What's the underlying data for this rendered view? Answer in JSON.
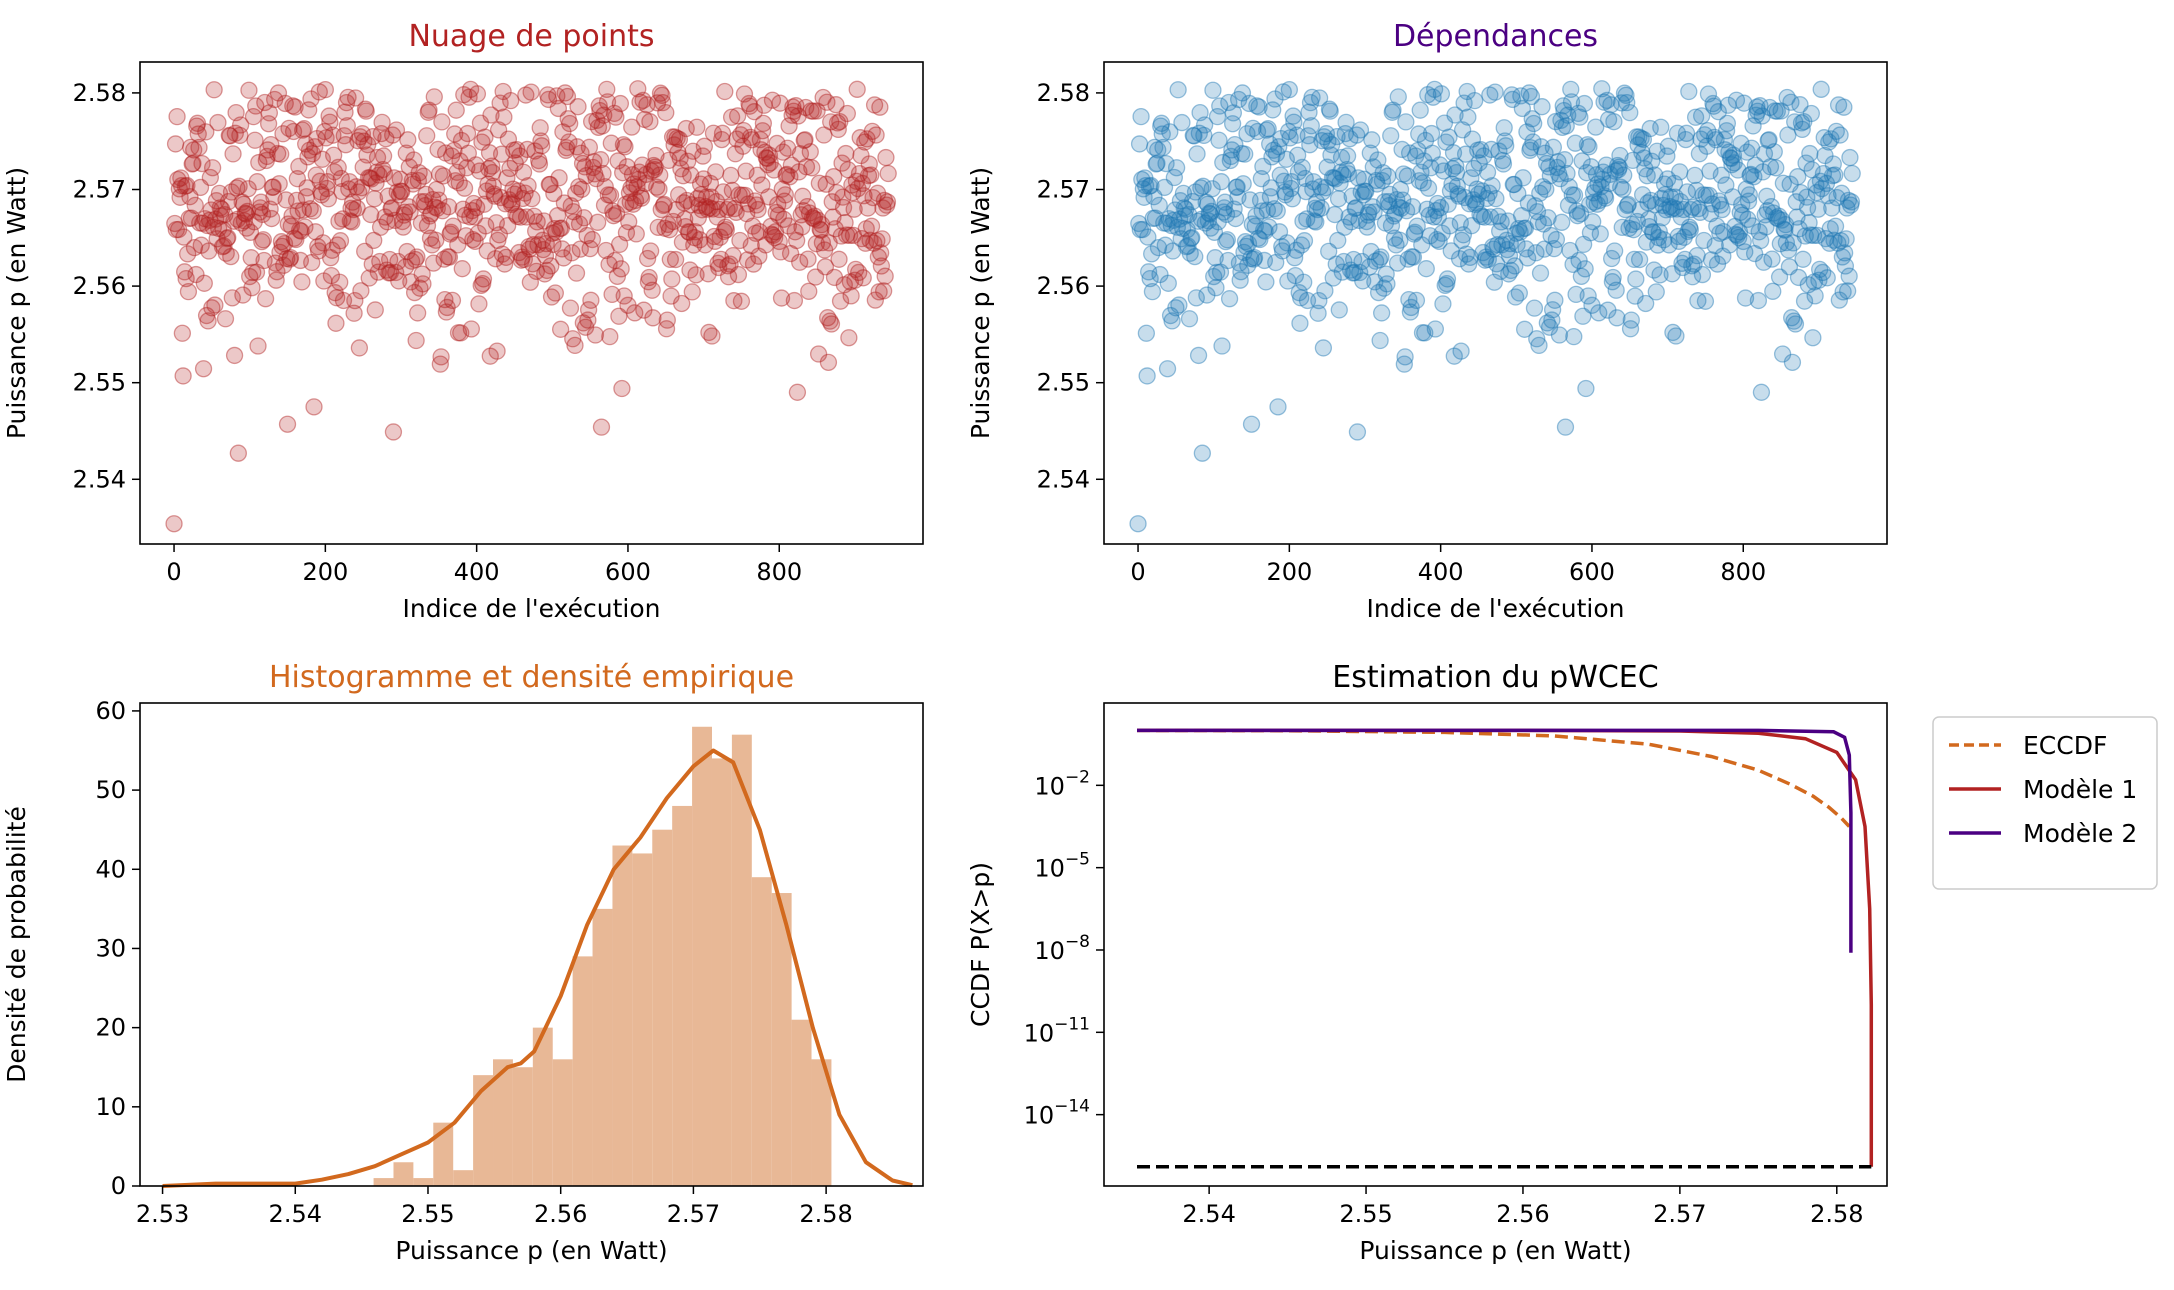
{
  "chart_data": [
    {
      "type": "scatter",
      "title": "Nuage de points",
      "title_color": "#b22222",
      "marker_color": "#b22222",
      "marker_alpha": 0.25,
      "xlabel": "Indice de l'exécution",
      "ylabel": "Puissance p (en Watt)",
      "xlim": [
        -45,
        990
      ],
      "ylim": [
        2.5333,
        2.5832
      ],
      "xticks": [
        0,
        200,
        400,
        600,
        800
      ],
      "yticks": [
        2.54,
        2.55,
        2.56,
        2.57,
        2.58
      ],
      "n_points": 945,
      "outliers": [
        {
          "x": 0,
          "y": 2.5354
        },
        {
          "x": 85,
          "y": 2.5427
        },
        {
          "x": 150,
          "y": 2.5457
        },
        {
          "x": 290,
          "y": 2.5449
        },
        {
          "x": 565,
          "y": 2.5454
        },
        {
          "x": 12,
          "y": 2.5507
        },
        {
          "x": 185,
          "y": 2.5475
        }
      ]
    },
    {
      "type": "scatter",
      "title": "Dépendances",
      "title_color": "#4b0082",
      "marker_color": "#1f77b4",
      "marker_alpha": 0.25,
      "xlabel": "Indice de l'exécution",
      "ylabel": "Puissance p (en Watt)",
      "xlim": [
        -45,
        990
      ],
      "ylim": [
        2.5333,
        2.5832
      ],
      "xticks": [
        0,
        200,
        400,
        600,
        800
      ],
      "yticks": [
        2.54,
        2.55,
        2.56,
        2.57,
        2.58
      ],
      "n_points": 945
    },
    {
      "type": "bar",
      "subtype": "histogram+kde",
      "title": "Histogramme et densité empirique",
      "title_color": "#d2691e",
      "bar_color": "#e8b896",
      "line_color": "#d2691e",
      "xlabel": "Puissance p (en Watt)",
      "ylabel": "Densité de probabilité",
      "xlim": [
        2.5283,
        2.5873
      ],
      "ylim": [
        0,
        61
      ],
      "xticks": [
        2.53,
        2.54,
        2.55,
        2.56,
        2.57,
        2.58
      ],
      "yticks": [
        0,
        10,
        20,
        30,
        40,
        50,
        60
      ],
      "bins_start": 2.5354,
      "bin_width": 0.0015,
      "bin_values": [
        0.5,
        0,
        0,
        0,
        0,
        0,
        0,
        1,
        3,
        1,
        8,
        2,
        14,
        16,
        15,
        20,
        16,
        29,
        35,
        43,
        42,
        45,
        48,
        58,
        54,
        57,
        39,
        37,
        21,
        16
      ],
      "kde": {
        "x": [
          2.53,
          2.534,
          2.538,
          2.54,
          2.542,
          2.544,
          2.546,
          2.548,
          2.55,
          2.552,
          2.554,
          2.556,
          2.557,
          2.558,
          2.56,
          2.562,
          2.564,
          2.566,
          2.568,
          2.57,
          2.5715,
          2.573,
          2.575,
          2.577,
          2.579,
          2.581,
          2.583,
          2.585,
          2.5865
        ],
        "y": [
          0,
          0.3,
          0.3,
          0.3,
          0.8,
          1.5,
          2.5,
          4,
          5.5,
          8,
          12,
          15,
          15.5,
          17,
          24,
          33,
          40,
          44,
          49,
          53,
          55,
          53.5,
          45,
          33,
          20,
          9,
          3,
          0.7,
          0.1
        ]
      }
    },
    {
      "type": "line",
      "title": "Estimation du pWCEC",
      "title_color": "#000000",
      "xlabel": "Puissance p (en Watt)",
      "ylabel": "CCDF P(X>p)",
      "yscale": "log",
      "xlim": [
        2.5333,
        2.5832
      ],
      "ylim_log10": [
        -16.6,
        1.0
      ],
      "xticks": [
        2.54,
        2.55,
        2.56,
        2.57,
        2.58
      ],
      "yticks_log10": [
        -2,
        -5,
        -8,
        -11,
        -14
      ],
      "legend_position": "outside-right",
      "series": [
        {
          "name": "ECCDF",
          "color": "#d2691e",
          "dash": "dashed",
          "x": [
            2.5354,
            2.545,
            2.555,
            2.562,
            2.568,
            2.572,
            2.575,
            2.577,
            2.5785,
            2.5795,
            2.5803,
            2.5808
          ],
          "log10y": [
            0,
            -0.01,
            -0.07,
            -0.2,
            -0.5,
            -0.95,
            -1.45,
            -1.95,
            -2.4,
            -2.8,
            -3.2,
            -3.5
          ]
        },
        {
          "name": "Modèle 1",
          "color": "#b22222",
          "dash": "solid",
          "x": [
            2.5354,
            2.56,
            2.57,
            2.575,
            2.578,
            2.58,
            2.5812,
            2.5818,
            2.5821,
            2.5822,
            2.5822
          ],
          "log10y": [
            0,
            0,
            -0.02,
            -0.1,
            -0.3,
            -0.8,
            -1.8,
            -3.5,
            -6.5,
            -10,
            -15.9
          ]
        },
        {
          "name": "Modèle 2",
          "color": "#4b0082",
          "dash": "solid",
          "x": [
            2.5354,
            2.56,
            2.575,
            2.5798,
            2.5805,
            2.5808,
            2.5809,
            2.5809
          ],
          "log10y": [
            0,
            0,
            0,
            -0.05,
            -0.25,
            -0.9,
            -3,
            -8.1
          ]
        },
        {
          "color": "#000000",
          "dash": "dashed",
          "x": [
            2.5354,
            2.5822
          ],
          "log10y": [
            -15.9,
            -15.9
          ]
        }
      ]
    }
  ]
}
